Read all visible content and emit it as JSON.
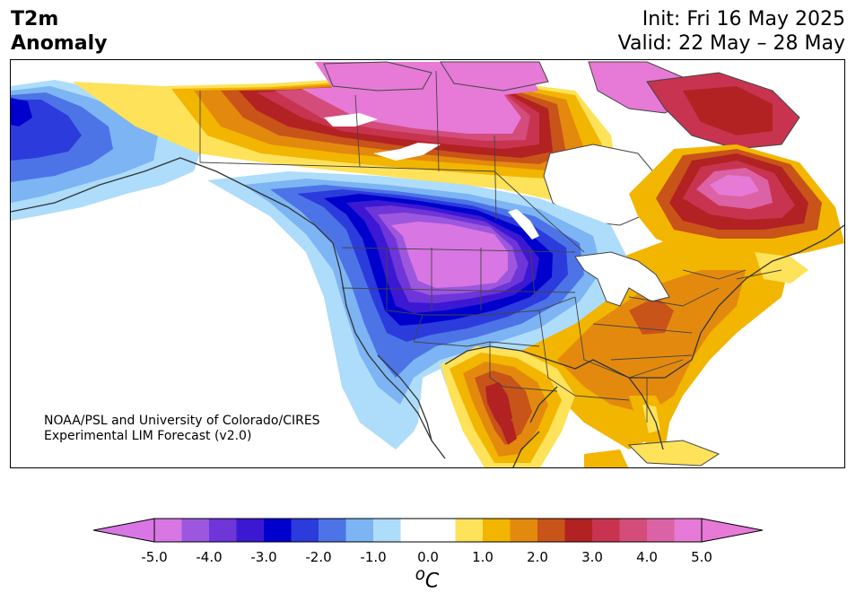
{
  "title": {
    "left_line1": "T2m",
    "left_line2": "Anomaly",
    "init": "Init: Fri 16 May 2025",
    "valid": "Valid: 22 May – 28 May"
  },
  "credit": {
    "line1": "NOAA/PSL and University of Colorado/CIRES",
    "line2": "Experimental LIM Forecast (v2.0)"
  },
  "colorbar": {
    "unit_base": "o",
    "unit_symbol": "C",
    "tick_labels": [
      "-5.0",
      "-4.0",
      "-3.0",
      "-2.0",
      "-1.0",
      "0.0",
      "1.0",
      "2.0",
      "3.0",
      "4.0",
      "5.0"
    ],
    "level_colors": [
      "#d876e4",
      "#9d57de",
      "#6e35d9",
      "#3c18d3",
      "#0000cd",
      "#2c3bdc",
      "#4c74e6",
      "#7db4f3",
      "#aedcfb",
      "#ffffff",
      "#ffffff",
      "#fde25a",
      "#f2b500",
      "#e38a0e",
      "#c8541a",
      "#b22222",
      "#c8344f",
      "#d34c7a",
      "#dc62a6",
      "#e67ad6"
    ]
  },
  "map_regions": [
    {
      "name": "western-us-cold-core",
      "anomaly_min": -5.0,
      "color": "#d876e4"
    },
    {
      "name": "northern-canada-warm",
      "anomaly_min": 5.0,
      "color": "#e67ad6"
    },
    {
      "name": "quebec-labrador-warm",
      "anomaly_min": 4.0,
      "color": "#dc62a6"
    },
    {
      "name": "south-texas-warm",
      "anomaly_min": 2.5,
      "color": "#b22222"
    },
    {
      "name": "alaska-cool",
      "anomaly_min": -3.0,
      "color": "#2c3bdc"
    },
    {
      "name": "eastern-us-warm",
      "anomaly_min": 1.5,
      "color": "#e38a0e"
    }
  ]
}
